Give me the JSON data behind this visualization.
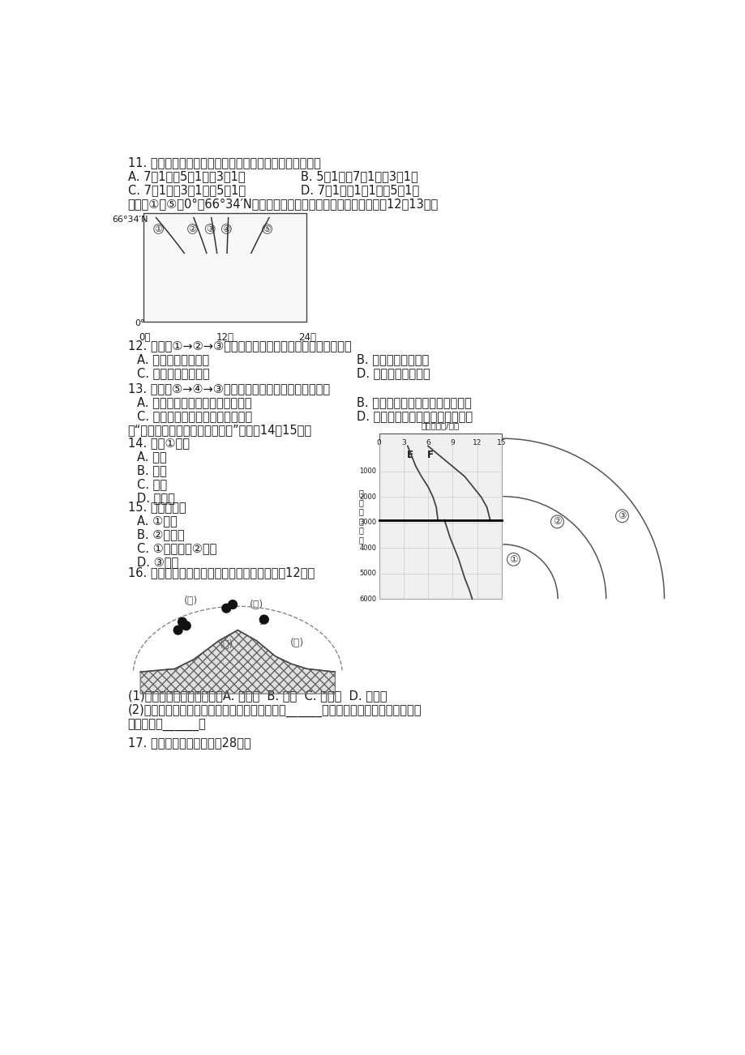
{
  "bg_color": "#ffffff",
  "page_width": 9.2,
  "page_height": 13.02,
  "text_color": "#1a1a1a",
  "q11_text": "11. 北京市正午太阳高度由大到小按日期的排列，正确的是",
  "q11_A": "A. 7月1日，5月1日，3月1日",
  "q11_B": "B. 5月1日，7月1日，3月1日",
  "q11_C": "C. 7月1日，3月1日，5月1日",
  "q11_D": "D. 7月1日，1月1日，5月1日",
  "q11_intro": "右图中①～⑤为0°～66°34′N之间不同日期的昼长分布曲线示意图。回畇12～13题。",
  "q12_text": "12. 曲线由①→②→③变化的时段内，太阳直射点的移动情况是",
  "q12_A": "A. 从北回归线到赤道",
  "q12_B": "B. 从赤道到南回归线",
  "q12_C": "C. 从南回归线到赤道",
  "q12_D": "D. 从赤道到北回归线",
  "q13_text": "13. 曲线由⑤→④→③变化的时段内，下列说法正确的是",
  "q13_A": "A. 北半球昼长夜短，且昼逐渐缩短",
  "q13_B": "B. 北半球昼短夜长，且昼逐渐增长",
  "q13_C": "C. 南半球昼长夜短，且夜逐渐缩短",
  "q13_D": "D. 南半球昼短夜长，且夜逐渐增长",
  "q14_intro": "读“地震波波速与地球内部构造图”，回畇14～15题。",
  "q14_text": "14. 图中①表示",
  "q14_A": "A. 地幔",
  "q14_B": "B. 地壳",
  "q14_C": "C. 地核",
  "q14_D": "D. 软流层",
  "q15_text": "15. 岩石圈位于",
  "q15_A": "A. ①顶部",
  "q15_B": "B. ②的全部",
  "q15_C": "C. ①的全部和②顶部",
  "q15_D": "D. ③外部",
  "q16_text": "16. 读地球外部圈层示意图，完成下列问题。（12分）",
  "q16_1": "(1)在图中四个括号内填注。A. 生物圈  B. 水圈  C. 岩石圈  D. 大气圈",
  "q16_2": "(2)在四大圈层中，范围渗透于其它三大圈层的是______，组成物质处于不间断的循环运",
  "q16_2b": "动之中的是______。",
  "q17_text": "17. 读图回答下列问题。（28分）"
}
